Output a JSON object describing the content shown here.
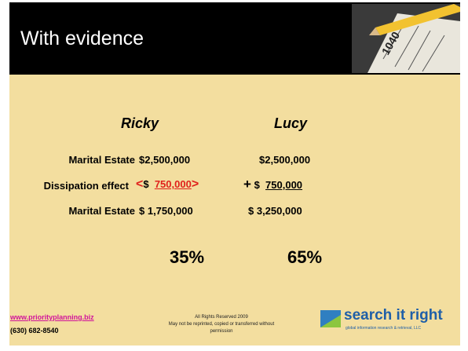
{
  "header": {
    "title": "With evidence"
  },
  "columns": [
    "Ricky",
    "Lucy"
  ],
  "rows": [
    {
      "label": "Marital Estate",
      "ricky": "$2,500,000",
      "lucy": "$2,500,000"
    },
    {
      "label": "Dissipation effect",
      "ricky_open": "<",
      "ricky_currency": "$",
      "ricky_amount": "750,000",
      "ricky_close": ">",
      "lucy_sign": "+",
      "lucy_currency": "$",
      "lucy_amount": "750,000"
    },
    {
      "label": "Marital Estate",
      "ricky": "$ 1,750,000",
      "lucy": "$ 3,250,000"
    }
  ],
  "percentages": [
    "35%",
    "65%"
  ],
  "footer": {
    "website": "www.priorityplanning.biz",
    "phone": "(630) 682-8540",
    "rights": [
      "All Rights Reserved 2009",
      "May not be reprinted, copied or transferred without",
      "permission"
    ],
    "logo": {
      "name": "search it right",
      "tagline": "global information research & retrieval, LLC"
    }
  }
}
